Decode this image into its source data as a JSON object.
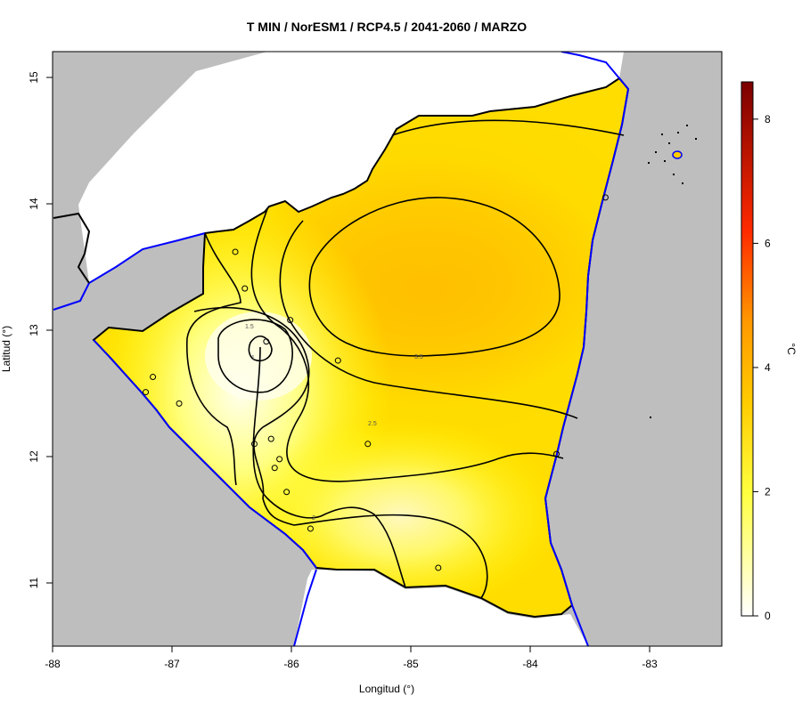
{
  "title": "T MIN / NorESM1 / RCP4.5 / 2041-2060 / MARZO",
  "x_label": "Longitud (°)",
  "y_label": "Latitud (°)",
  "x_ticks": [
    "-88",
    "-87",
    "-86",
    "-85",
    "-84",
    "-83"
  ],
  "y_ticks": [
    "11",
    "12",
    "13",
    "14",
    "15"
  ],
  "colorbar": {
    "unit": "°C",
    "ticks": [
      "0",
      "2",
      "4",
      "6",
      "8"
    ],
    "range": [
      0,
      8.6
    ],
    "colors": [
      "#ffffff",
      "#ffff60",
      "#ffcc00",
      "#ff9900",
      "#ff2200",
      "#7a0000"
    ]
  },
  "contour_labels": [
    "1",
    "1.5",
    "2",
    "2.5",
    "3.5"
  ],
  "colors": {
    "background": "#bebebe",
    "border": "#0000ff",
    "land_outline": "#000000",
    "contour": "#000000"
  },
  "map_extent": {
    "lon": [
      -88,
      -82.4
    ],
    "lat": [
      10.5,
      15.2
    ]
  },
  "stations": [
    {
      "lon": -86.47,
      "lat": 13.62
    },
    {
      "lon": -86.39,
      "lat": 13.33
    },
    {
      "lon": -86.01,
      "lat": 13.08
    },
    {
      "lon": -86.21,
      "lat": 12.91
    },
    {
      "lon": -85.61,
      "lat": 12.76
    },
    {
      "lon": -87.16,
      "lat": 12.63
    },
    {
      "lon": -87.22,
      "lat": 12.51
    },
    {
      "lon": -86.94,
      "lat": 12.42
    },
    {
      "lon": -86.31,
      "lat": 12.1
    },
    {
      "lon": -86.17,
      "lat": 12.14
    },
    {
      "lon": -86.1,
      "lat": 11.98
    },
    {
      "lon": -86.14,
      "lat": 11.91
    },
    {
      "lon": -86.04,
      "lat": 11.72
    },
    {
      "lon": -85.36,
      "lat": 12.1
    },
    {
      "lon": -85.84,
      "lat": 11.43
    },
    {
      "lon": -84.77,
      "lat": 11.12
    },
    {
      "lon": -83.78,
      "lat": 12.02
    },
    {
      "lon": -83.37,
      "lat": 14.05
    }
  ]
}
